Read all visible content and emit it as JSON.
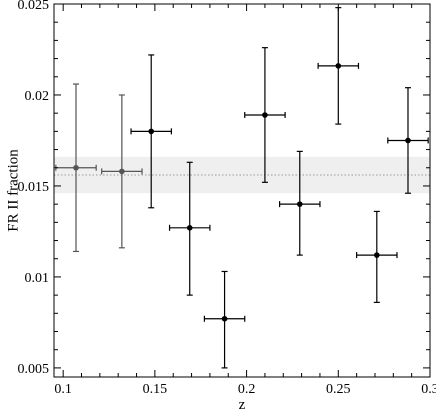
{
  "chart_data": {
    "type": "scatter",
    "xlabel": "z",
    "ylabel": "FR II fraction",
    "xlim": [
      0.095,
      0.3
    ],
    "ylim": [
      0.0045,
      0.025
    ],
    "x_ticks": [
      "0.1",
      "0.15",
      "0.2",
      "0.25",
      "0.3"
    ],
    "y_ticks": [
      "0.005",
      "0.01",
      "0.015",
      "0.02",
      "0.025"
    ],
    "grid": false,
    "legend": "none",
    "reference_line": {
      "y": 0.0156,
      "style": "dotted",
      "color": "#9a9a9a"
    },
    "reference_band": {
      "y_low": 0.0146,
      "y_high": 0.0166,
      "color": "#efefef"
    },
    "series": [
      {
        "marker_color": "#000000",
        "points": [
          {
            "x": 0.107,
            "y": 0.016,
            "xerr": 0.011,
            "y_low": 0.0114,
            "y_high": 0.0206,
            "color": "#555555"
          },
          {
            "x": 0.132,
            "y": 0.0158,
            "xerr": 0.011,
            "y_low": 0.0116,
            "y_high": 0.02,
            "color": "#555555"
          },
          {
            "x": 0.148,
            "y": 0.018,
            "xerr": 0.011,
            "y_low": 0.0138,
            "y_high": 0.0222,
            "color": "#000000"
          },
          {
            "x": 0.169,
            "y": 0.0127,
            "xerr": 0.011,
            "y_low": 0.009,
            "y_high": 0.0163,
            "color": "#000000"
          },
          {
            "x": 0.188,
            "y": 0.0077,
            "xerr": 0.011,
            "y_low": 0.005,
            "y_high": 0.0103,
            "color": "#000000"
          },
          {
            "x": 0.21,
            "y": 0.0189,
            "xerr": 0.011,
            "y_low": 0.0152,
            "y_high": 0.0226,
            "color": "#000000"
          },
          {
            "x": 0.229,
            "y": 0.014,
            "xerr": 0.011,
            "y_low": 0.0112,
            "y_high": 0.0169,
            "color": "#000000"
          },
          {
            "x": 0.25,
            "y": 0.0216,
            "xerr": 0.011,
            "y_low": 0.0184,
            "y_high": 0.0248,
            "color": "#000000"
          },
          {
            "x": 0.271,
            "y": 0.0112,
            "xerr": 0.011,
            "y_low": 0.0086,
            "y_high": 0.0136,
            "color": "#000000"
          },
          {
            "x": 0.288,
            "y": 0.0175,
            "xerr": 0.011,
            "y_low": 0.0146,
            "y_high": 0.0204,
            "color": "#000000"
          }
        ]
      }
    ]
  }
}
